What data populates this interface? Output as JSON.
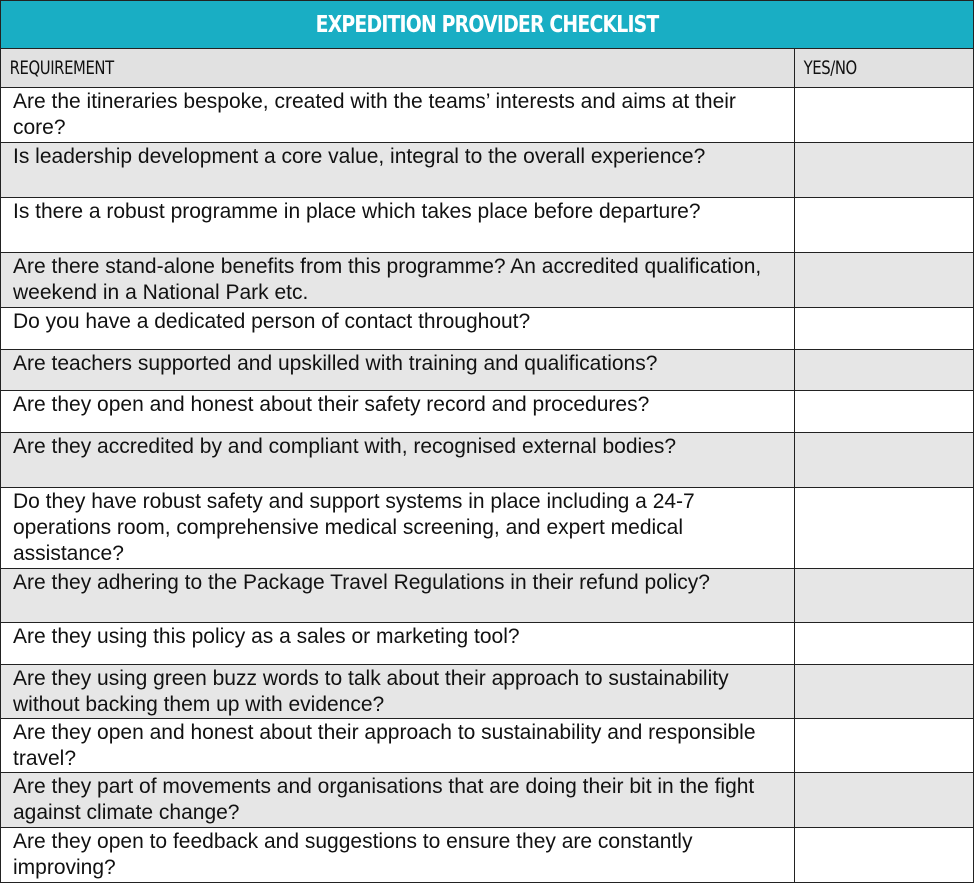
{
  "title": "EXPEDITION PROVIDER CHECKLIST",
  "columns": {
    "requirement": "REQUIREMENT",
    "answer": "YES/NO"
  },
  "rows": [
    {
      "requirement": "Are the itineraries bespoke, created with the teams’ interests and aims at their core?",
      "answer": ""
    },
    {
      "requirement": "Is leadership development a core value, integral to the overall experience?",
      "answer": ""
    },
    {
      "requirement": "Is there a robust programme in place which takes place before departure?",
      "answer": ""
    },
    {
      "requirement": "Are there stand-alone benefits from this programme? An accredited qualification, weekend in a National Park etc.",
      "answer": ""
    },
    {
      "requirement": "Do you have a dedicated person of contact throughout?",
      "answer": ""
    },
    {
      "requirement": "Are teachers supported and upskilled with training and qualifications?",
      "answer": ""
    },
    {
      "requirement": "Are they open and honest about their safety record and procedures?",
      "answer": ""
    },
    {
      "requirement": "Are they accredited by and compliant with, recognised external bodies?",
      "answer": ""
    },
    {
      "requirement": "Do they have robust safety and support systems in place including a 24-7 operations room, comprehensive medical screening, and expert medical assistance?",
      "answer": ""
    },
    {
      "requirement": "Are they adhering to the Package Travel Regulations in their refund policy?",
      "answer": ""
    },
    {
      "requirement": "Are they using this policy as a sales or marketing tool?",
      "answer": ""
    },
    {
      "requirement": "Are they using green buzz words to talk about their approach to sustainability without backing them up with evidence?",
      "answer": ""
    },
    {
      "requirement": "Are they open and honest about their approach to sustainability and responsible travel?",
      "answer": ""
    },
    {
      "requirement": "Are they part of movements and organisations that are doing their bit in the fight against climate change?",
      "answer": ""
    },
    {
      "requirement": "Are they open to feedback and suggestions to ensure they are constantly improving?",
      "answer": ""
    }
  ],
  "colors": {
    "title_bg": "#19aec4",
    "title_text": "#ffffff",
    "header_bg": "#e1e1e1",
    "shaded_row": "#e6e6e6",
    "border": "#222222"
  }
}
